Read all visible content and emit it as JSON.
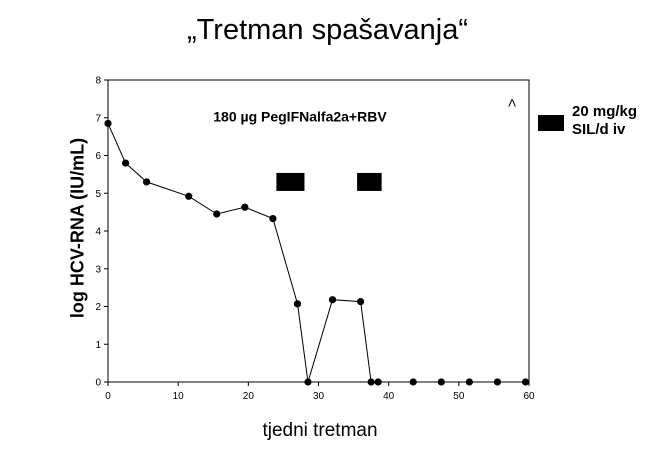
{
  "slide_title": "„Tretman spašavanja“",
  "chart_data": {
    "type": "line",
    "xlabel": "tjedni tretman",
    "ylabel": "log HCV-RNA (IU/mL)",
    "xlim": [
      0,
      60
    ],
    "ylim": [
      0,
      8
    ],
    "xticks": [
      "0",
      "10",
      "20",
      "30",
      "40",
      "50",
      "60"
    ],
    "yticks": [
      "0",
      "1",
      "2",
      "3",
      "4",
      "5",
      "6",
      "7",
      "8"
    ],
    "series": [
      {
        "x": [
          0,
          2.5,
          5.5,
          11.5,
          15.5,
          19.5,
          23.5,
          27,
          28.5,
          32,
          36,
          37.5,
          38.5,
          43.5,
          47.5,
          51.5,
          55.5,
          59.5
        ],
        "y": [
          6.85,
          5.8,
          5.3,
          4.92,
          4.45,
          4.63,
          4.33,
          2.07,
          0,
          2.18,
          2.13,
          0,
          0,
          0,
          0,
          0,
          0,
          0
        ]
      }
    ],
    "annotations": {
      "regimen": "180 µg PegIFNalfa2a+RBV",
      "arrow": ">",
      "treatment_blocks": [
        {
          "x_start": 24,
          "x_end": 28,
          "y": 5.3
        },
        {
          "x_start": 35.5,
          "x_end": 39,
          "y": 5.3
        }
      ]
    },
    "legend": {
      "label_line1": "20 mg/kg",
      "label_line2": "SIL/d iv",
      "placement": "right"
    }
  }
}
